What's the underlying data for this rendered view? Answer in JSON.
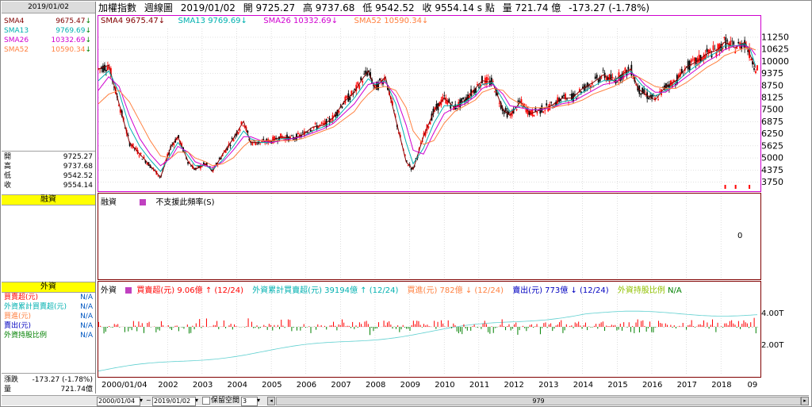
{
  "left_panel": {
    "date": "2019/01/02",
    "sma": [
      {
        "label": "SMA4",
        "value": "9675.47",
        "arrow": "↓",
        "color": "#800000"
      },
      {
        "label": "SMA13",
        "value": "9769.69",
        "arrow": "↓",
        "color": "#00b0b0"
      },
      {
        "label": "SMA26",
        "value": "10332.69",
        "arrow": "↓",
        "color": "#d000d0"
      },
      {
        "label": "SMA52",
        "value": "10590.34",
        "arrow": "↓",
        "color": "#ff8040"
      }
    ],
    "ohlc": [
      {
        "label": "開",
        "value": "9725.27"
      },
      {
        "label": "高",
        "value": "9737.68"
      },
      {
        "label": "低",
        "value": "9542.52"
      },
      {
        "label": "收",
        "value": "9554.14"
      }
    ],
    "margin_title": "融資",
    "foreign_title": "外資",
    "foreign_rows": [
      {
        "label": "買賣超(元)",
        "value": "N/A",
        "color": "#ff0000"
      },
      {
        "label": "外資累計買賣超(元)",
        "value": "N/A",
        "color": "#00b0b0"
      },
      {
        "label": "買進(元)",
        "value": "N/A",
        "color": "#ff8040"
      },
      {
        "label": "賣出(元)",
        "value": "N/A",
        "color": "#0000c0"
      },
      {
        "label": "外資持股比例",
        "value": "N/A",
        "color": "#008000"
      }
    ],
    "change_label": "漲跌",
    "change_value": "-173.27 (-1.78%)",
    "volume_label": "量",
    "volume_value": "721.74億"
  },
  "header": {
    "name": "加權指數",
    "period": "週線圖",
    "date": "2019/01/02",
    "open": "開 9725.27",
    "high": "高 9737.68",
    "low": "低 9542.52",
    "close": "收 9554.14 s 點",
    "volume": "量 721.74 億",
    "change": "-173.27 (-1.78%)"
  },
  "main_legend": [
    {
      "text": "SMA4 9675.47↓",
      "color": "#800000"
    },
    {
      "text": "SMA13 9769.69↓",
      "color": "#00b0b0"
    },
    {
      "text": "SMA26 10332.69↓",
      "color": "#d000d0"
    },
    {
      "text": "SMA52 10590.34↓",
      "color": "#ff8040"
    }
  ],
  "margin_panel": {
    "title": "融資",
    "note": "不支援此頻率(S)",
    "zero": "0"
  },
  "foreign_panel": {
    "title": "外資",
    "legend": [
      {
        "text": "買賣超(元) 9.06億",
        "color": "#ff0000"
      },
      {
        "text": "↑ (12/24)",
        "color": "#ff0000"
      },
      {
        "text": "外資累計買賣超(元) 39194億",
        "color": "#00b0b0"
      },
      {
        "text": "↑ (12/24)",
        "color": "#00b0b0"
      },
      {
        "text": "買進(元) 782億",
        "color": "#ff8040"
      },
      {
        "text": "↓ (12/24)",
        "color": "#ff8040"
      },
      {
        "text": "賣出(元) 773億",
        "color": "#0000c0"
      },
      {
        "text": "↓ (12/24)",
        "color": "#0000c0"
      },
      {
        "text": "外資持股比例",
        "color": "#90c000"
      },
      {
        "text": "N/A",
        "color": "#008000"
      }
    ],
    "y_labels": [
      "4.00T",
      "2.00T"
    ]
  },
  "bottom_bar": {
    "start_date": "2000/01/04",
    "end_date": "2019/01/02",
    "keep_space_label": "保留空間",
    "keep_space_value": "3",
    "bar_count": "979"
  },
  "chart_data": {
    "type": "line",
    "title": "",
    "x_labels": [
      "2000/01/04",
      "2002",
      "2003",
      "2004",
      "2005",
      "2006",
      "2007",
      "2008",
      "2009",
      "2010",
      "2011",
      "2012",
      "2013",
      "2014",
      "2015",
      "2016",
      "2017",
      "2018",
      "09"
    ],
    "y_ticks": [
      "11250",
      "10625",
      "10000",
      "9375",
      "8750",
      "8125",
      "7500",
      "6875",
      "6250",
      "5625",
      "5000",
      "4375",
      "3750"
    ],
    "ylim": [
      3400,
      11700
    ],
    "x": [
      2000.0,
      2000.3,
      2000.6,
      2000.9,
      2001.2,
      2001.5,
      2001.8,
      2002.1,
      2002.3,
      2002.6,
      2002.8,
      2003.1,
      2003.3,
      2003.6,
      2003.9,
      2004.2,
      2004.4,
      2004.7,
      2005.0,
      2005.3,
      2005.6,
      2005.9,
      2006.2,
      2006.5,
      2006.8,
      2007.1,
      2007.4,
      2007.6,
      2007.8,
      2008.0,
      2008.3,
      2008.6,
      2008.9,
      2009.1,
      2009.4,
      2009.7,
      2010.0,
      2010.3,
      2010.6,
      2010.9,
      2011.1,
      2011.4,
      2011.7,
      2011.9,
      2012.2,
      2012.5,
      2012.8,
      2013.1,
      2013.4,
      2013.7,
      2014.0,
      2014.3,
      2014.6,
      2014.9,
      2015.2,
      2015.4,
      2015.6,
      2015.8,
      2016.1,
      2016.4,
      2016.7,
      2017.0,
      2017.3,
      2017.6,
      2017.9,
      2018.1,
      2018.4,
      2018.7,
      2018.85,
      2019.0
    ],
    "series": [
      {
        "name": "SMA4",
        "color": "#800000",
        "values": [
          9600,
          9800,
          7800,
          5800,
          5200,
          4600,
          4000,
          5600,
          6100,
          4800,
          4400,
          4700,
          4300,
          5200,
          6000,
          6900,
          5800,
          5800,
          5900,
          6100,
          6000,
          6200,
          6600,
          6700,
          7100,
          7900,
          8400,
          9000,
          9500,
          8600,
          9200,
          7000,
          4800,
          4400,
          6100,
          7400,
          8100,
          7600,
          8000,
          8600,
          9000,
          8900,
          7500,
          7200,
          7900,
          7300,
          7500,
          7700,
          8100,
          8100,
          8600,
          8900,
          9300,
          9000,
          9400,
          9600,
          8600,
          8300,
          8000,
          8700,
          9000,
          9700,
          10000,
          10400,
          10600,
          11000,
          10700,
          11000,
          10300,
          9675
        ]
      },
      {
        "name": "SMA13",
        "color": "#00b0b0",
        "values": [
          9000,
          9500,
          8400,
          6600,
          5600,
          4900,
          4300,
          5200,
          5800,
          5100,
          4600,
          4600,
          4400,
          4900,
          5600,
          6400,
          6000,
          5800,
          5800,
          6000,
          6000,
          6100,
          6400,
          6600,
          6900,
          7500,
          8100,
          8600,
          9100,
          8800,
          9000,
          7800,
          5800,
          4700,
          5500,
          6800,
          7700,
          7700,
          7900,
          8300,
          8800,
          8900,
          8000,
          7400,
          7700,
          7500,
          7500,
          7600,
          7900,
          8000,
          8400,
          8700,
          9000,
          9000,
          9300,
          9500,
          9000,
          8600,
          8200,
          8500,
          8900,
          9400,
          9800,
          10200,
          10500,
          10800,
          10800,
          10900,
          10600,
          9770
        ]
      },
      {
        "name": "SMA26",
        "color": "#d000d0",
        "values": [
          8500,
          9200,
          8700,
          7200,
          6000,
          5200,
          4600,
          5000,
          5600,
          5300,
          4800,
          4600,
          4500,
          4800,
          5400,
          6100,
          6100,
          5900,
          5800,
          5900,
          6000,
          6100,
          6300,
          6500,
          6800,
          7300,
          7800,
          8300,
          8800,
          8900,
          8900,
          8200,
          6700,
          5400,
          5200,
          6300,
          7300,
          7600,
          7800,
          8200,
          8600,
          8800,
          8300,
          7700,
          7600,
          7500,
          7500,
          7600,
          7800,
          7900,
          8200,
          8500,
          8800,
          8900,
          9200,
          9400,
          9200,
          8800,
          8400,
          8400,
          8800,
          9200,
          9600,
          10000,
          10300,
          10600,
          10800,
          10800,
          10700,
          10333
        ]
      },
      {
        "name": "SMA52",
        "color": "#ff8040",
        "values": [
          7800,
          8300,
          8500,
          7900,
          6900,
          5900,
          5100,
          5000,
          5300,
          5300,
          5000,
          4800,
          4600,
          4700,
          5000,
          5600,
          5900,
          5900,
          5900,
          5900,
          5900,
          6000,
          6200,
          6400,
          6600,
          7000,
          7400,
          7900,
          8300,
          8600,
          8700,
          8500,
          7600,
          6400,
          5700,
          5900,
          6800,
          7400,
          7700,
          8000,
          8400,
          8600,
          8500,
          8100,
          7800,
          7600,
          7600,
          7600,
          7700,
          7800,
          8000,
          8300,
          8500,
          8700,
          9000,
          9200,
          9200,
          9000,
          8700,
          8600,
          8600,
          8900,
          9300,
          9700,
          10000,
          10300,
          10500,
          10700,
          10700,
          10590
        ]
      }
    ]
  }
}
